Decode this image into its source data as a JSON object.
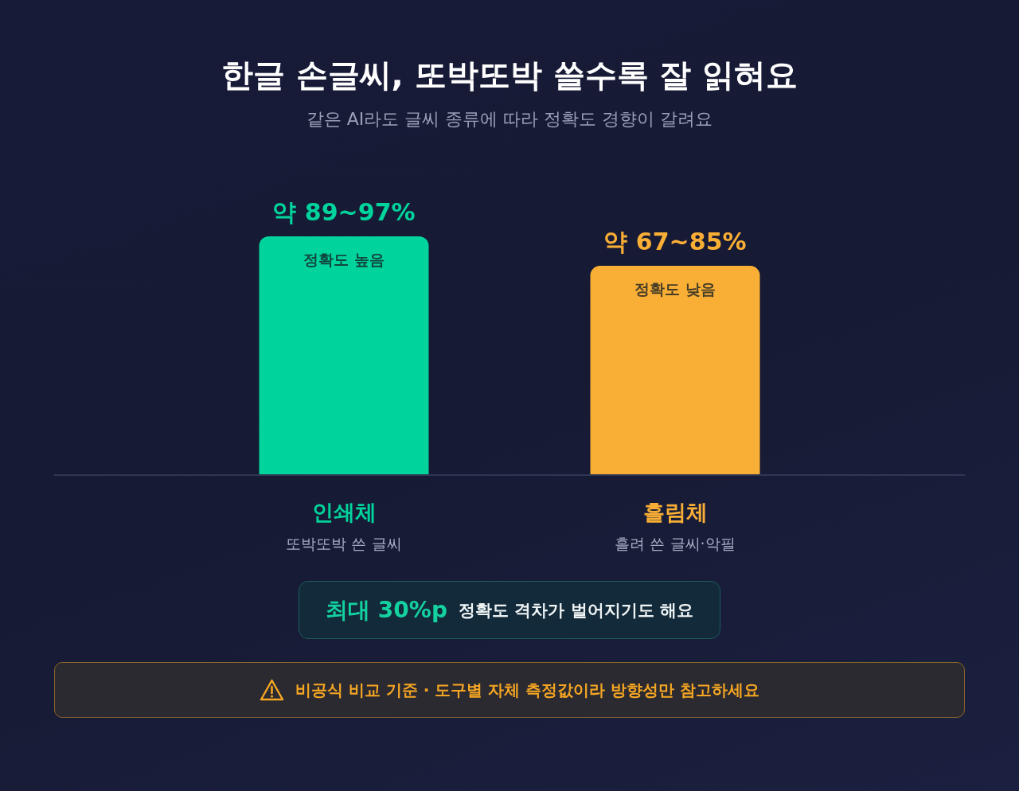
{
  "chart_data": {
    "type": "bar",
    "title": "한글 손글씨, 또박또박 쓸수록 잘 읽혀요",
    "subtitle": "같은 AI라도 글씨 종류에 따라 정확도 경향이 갈려요",
    "categories": [
      "인쇄체",
      "흘림체"
    ],
    "values": [
      97,
      85
    ],
    "colors": [
      "#00d49c",
      "#f9ae35"
    ],
    "value_labels": [
      "약 89~97%",
      "약 67~85%"
    ],
    "annotations": [
      "정확도 높음",
      "정확도 낮음",
      "또박또박 쓴 글씨",
      "흘려 쓴 글씨·악필",
      "최대 30%p",
      "정확도 격차가 벌어지기도 해요",
      "비공식 비교 기준 · 도구별 자체 측정값이라 방향성만 참고하세요"
    ],
    "tick_labels": "x",
    "grid": false,
    "legend": false
  }
}
